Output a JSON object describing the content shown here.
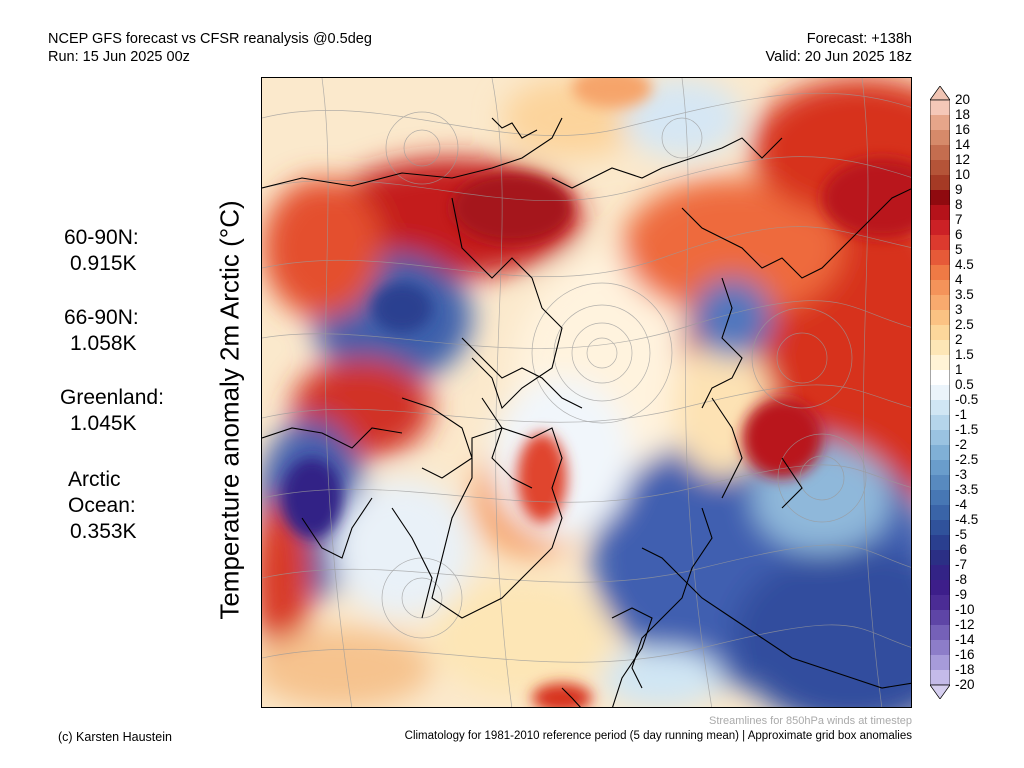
{
  "header": {
    "title": "NCEP GFS forecast vs CFSR reanalysis @0.5deg",
    "run": "Run: 15 Jun 2025 00z",
    "forecast": "Forecast: +138h",
    "valid": "Valid: 20 Jun 2025 18z"
  },
  "stats": [
    {
      "label": "60-90N:",
      "value": "0.915K"
    },
    {
      "label": "66-90N:",
      "value": "1.058K"
    },
    {
      "label": "Greenland:",
      "value": "1.045K"
    },
    {
      "label": "Arctic Ocean:",
      "label_lines": [
        "Arctic",
        "Ocean:"
      ],
      "value": "0.353K"
    }
  ],
  "vertical_label": "Temperature anomaly 2m Arctic (°C)",
  "colorbar": {
    "labels": [
      "20",
      "18",
      "16",
      "14",
      "12",
      "10",
      "9",
      "8",
      "7",
      "6",
      "5",
      "4.5",
      "4",
      "3.5",
      "3",
      "2.5",
      "2",
      "1.5",
      "1",
      "0.5",
      "-0.5",
      "-1",
      "-1.5",
      "-2",
      "-2.5",
      "-3",
      "-3.5",
      "-4",
      "-4.5",
      "-5",
      "-6",
      "-7",
      "-8",
      "-9",
      "-10",
      "-12",
      "-14",
      "-16",
      "-18",
      "-20"
    ],
    "colors": [
      "#f5c7b8",
      "#e6a58a",
      "#d68a6a",
      "#c46d4f",
      "#b55438",
      "#a53a25",
      "#8f0a0f",
      "#b5121a",
      "#cc2126",
      "#dc3a2e",
      "#e65a38",
      "#ef7a45",
      "#f4935a",
      "#f8aa6e",
      "#fbc283",
      "#fcd79b",
      "#fde6b6",
      "#fff3d6",
      "#ffffff",
      "#ebf4fb",
      "#d0e6f4",
      "#b5d5eb",
      "#9ac3e1",
      "#80b0d6",
      "#6a9dcb",
      "#588abf",
      "#4777b4",
      "#3a64a8",
      "#30529b",
      "#2a3f8f",
      "#2b2f85",
      "#332386",
      "#3d1e8a",
      "#4b2c95",
      "#5e45a6",
      "#7561b8",
      "#8d7dc9",
      "#a79bda",
      "#c4bbe9"
    ],
    "over_color": "#f0c4b3",
    "under_color": "#d6cff0"
  },
  "footer": {
    "credit": "(c) Karsten Haustein",
    "note": "Streamlines for 850hPa winds at timestep",
    "climatology": "Climatology for 1981-2010 reference period (5 day running mean) | Approximate grid box anomalies"
  },
  "colors": {
    "warm": "#d7301f",
    "cold": "#3f5fb0",
    "neutral": "#fdf0d8",
    "coast": "#000000",
    "streamline": "#9a9a9a"
  }
}
